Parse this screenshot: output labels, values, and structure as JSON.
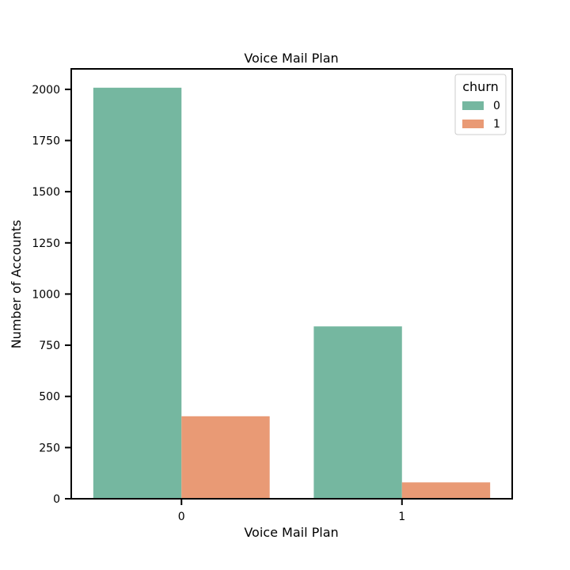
{
  "chart_data": {
    "type": "bar",
    "title": "Voice Mail Plan",
    "xlabel": "Voice Mail Plan",
    "ylabel": "Number of Accounts",
    "categories": [
      "0",
      "1"
    ],
    "series": [
      {
        "name": "0",
        "values": [
          2008,
          842
        ],
        "color": "#75B7A0"
      },
      {
        "name": "1",
        "values": [
          403,
          80
        ],
        "color": "#E99A75"
      }
    ],
    "ylim": [
      0,
      2100
    ],
    "yticks": [
      0,
      250,
      500,
      750,
      1000,
      1250,
      1500,
      1750,
      2000
    ],
    "grid": false,
    "legend": {
      "title": "churn",
      "placement": "top-right"
    }
  }
}
